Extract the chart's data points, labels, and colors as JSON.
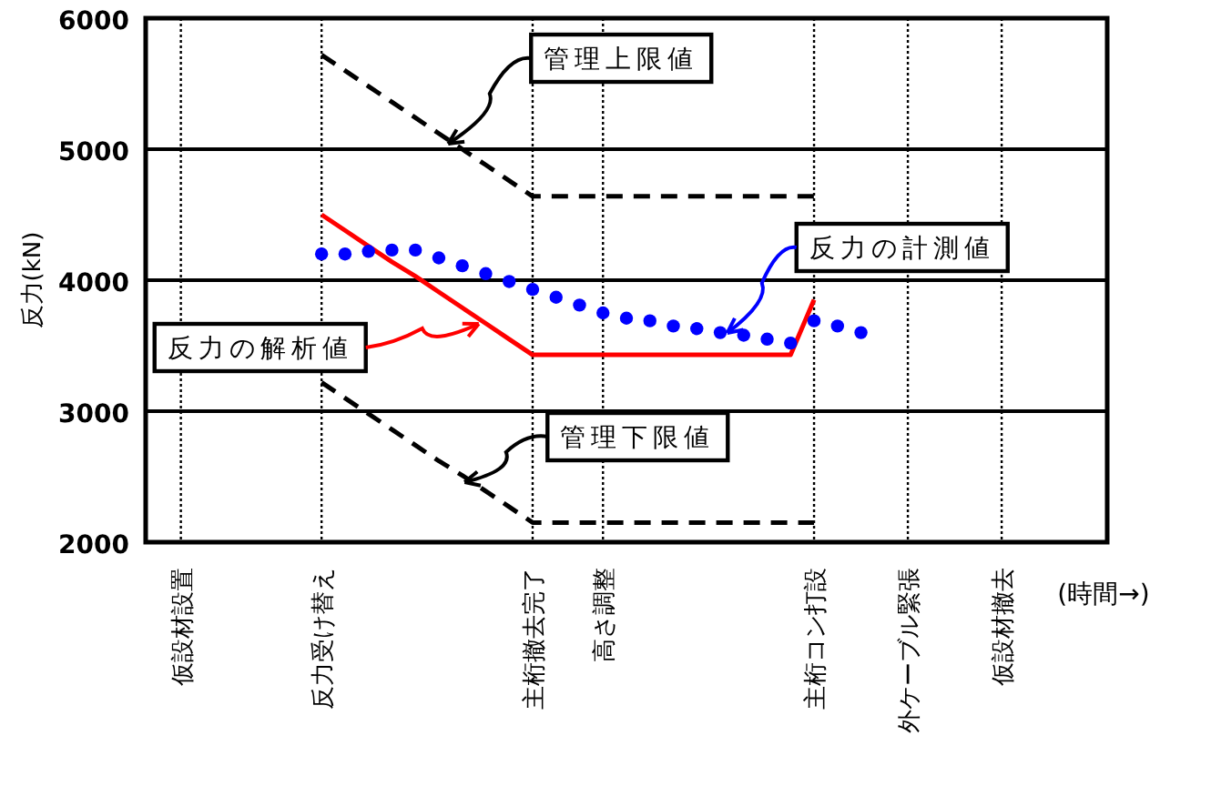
{
  "chart_data": {
    "type": "line",
    "ylabel": "反力(kN)",
    "xlabel": "(時間→)",
    "ylim": [
      2000,
      6000
    ],
    "yticks": [
      2000,
      3000,
      4000,
      5000,
      6000
    ],
    "categories": [
      null,
      "仮設材設置",
      null,
      null,
      null,
      null,
      null,
      "反力受け替え",
      null,
      null,
      null,
      null,
      null,
      null,
      null,
      null,
      "主桁撤去完了",
      null,
      null,
      "高さ調整",
      null,
      null,
      null,
      null,
      null,
      null,
      null,
      null,
      "主桁コン打設",
      null,
      null,
      null,
      "外ケーブル緊張",
      null,
      null,
      null,
      "仮設材撤去",
      null,
      null,
      null,
      null
    ],
    "grid": true,
    "series": [
      {
        "name": "管理上限値",
        "line_style": "dashed",
        "color": "#000000",
        "values": [
          null,
          null,
          null,
          null,
          null,
          null,
          null,
          5720,
          5600,
          5480,
          5360,
          5240,
          5120,
          5000,
          4880,
          4760,
          4640,
          4640,
          4640,
          4640,
          4640,
          4640,
          4640,
          4640,
          4640,
          4640,
          4640,
          4640,
          4640,
          null,
          null,
          null,
          null,
          null,
          null,
          null,
          null,
          null,
          null,
          null,
          null
        ]
      },
      {
        "name": "管理下限値",
        "line_style": "dashed",
        "color": "#000000",
        "values": [
          null,
          null,
          null,
          null,
          null,
          null,
          null,
          3220,
          3100,
          2980,
          2860,
          2740,
          2620,
          2510,
          2390,
          2270,
          2150,
          2150,
          2150,
          2150,
          2150,
          2150,
          2150,
          2150,
          2150,
          2150,
          2150,
          2150,
          2150,
          null,
          null,
          null,
          null,
          null,
          null,
          null,
          null,
          null,
          null,
          null,
          null
        ]
      },
      {
        "name": "反力の解析値",
        "line_style": "solid",
        "color": "#ff0000",
        "values": [
          null,
          null,
          null,
          null,
          null,
          null,
          null,
          4500,
          4380,
          4260,
          4140,
          4030,
          3910,
          3790,
          3670,
          3550,
          3430,
          3430,
          3430,
          3430,
          3430,
          3430,
          3430,
          3430,
          3430,
          3430,
          3430,
          3430,
          3850,
          null,
          null,
          null,
          null,
          null,
          null,
          null,
          null,
          null,
          null,
          null,
          null
        ]
      },
      {
        "name": "反力の計測値",
        "type": "scatter",
        "marker": "circle",
        "color": "#0000ff",
        "values": [
          null,
          null,
          null,
          null,
          null,
          null,
          null,
          4200,
          4200,
          4220,
          4230,
          4230,
          4170,
          4110,
          4050,
          3990,
          3930,
          3870,
          3810,
          3750,
          3710,
          3690,
          3650,
          3630,
          3600,
          3580,
          3550,
          3520,
          3690,
          3650,
          3600,
          null,
          null,
          null,
          null,
          null,
          null,
          null,
          null,
          null,
          null
        ]
      }
    ]
  }
}
